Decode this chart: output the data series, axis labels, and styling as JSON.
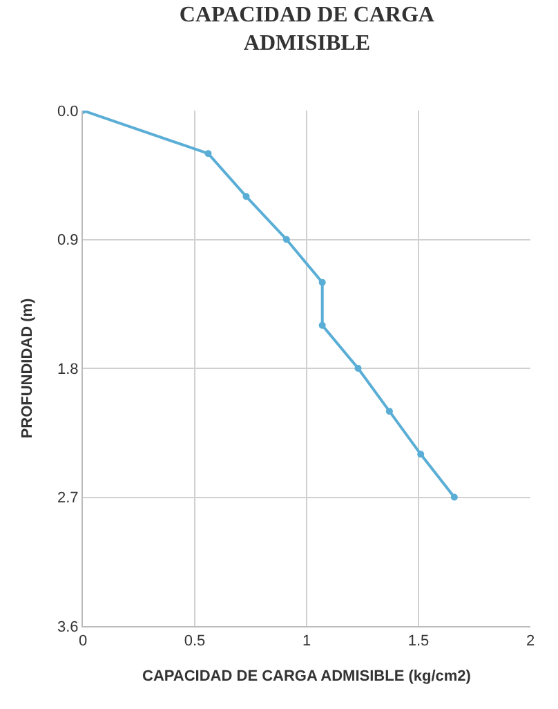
{
  "chart_data": {
    "type": "line",
    "title": "CAPACIDAD DE CARGA\nADMISIBLE",
    "xlabel": "CAPACIDAD DE CARGA ADMISIBLE (kg/cm2)",
    "ylabel": "PROFUNDIDAD (m)",
    "x": [
      0.0,
      0.56,
      0.73,
      0.91,
      1.07,
      1.07,
      1.23,
      1.37,
      1.51,
      1.66
    ],
    "series": [
      {
        "color": "#5aaed6",
        "values": [
          0.0,
          0.3,
          0.6,
          0.9,
          1.2,
          1.5,
          1.8,
          2.1,
          2.4,
          2.7
        ]
      }
    ],
    "xlim": [
      0,
      2
    ],
    "xticks": [
      0,
      0.5,
      1,
      1.5,
      2
    ],
    "ylim": [
      3.6,
      0
    ],
    "yticks": [
      {
        "value": 0,
        "label": "0.0"
      },
      0.9,
      1.8,
      2.7,
      3.6
    ],
    "grid": true,
    "marker": "circle",
    "line_style": "solid",
    "legend": false
  }
}
